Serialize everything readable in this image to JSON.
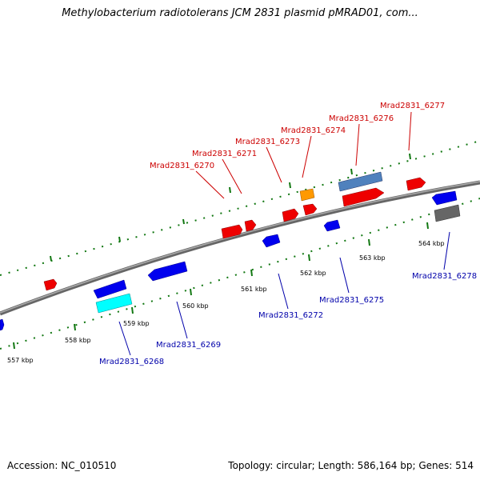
{
  "title": "Methylobacterium radiotolerans JCM 2831 plasmid pMRAD01, com...",
  "footer": {
    "accession": "Accession: NC_010510",
    "summary": "Topology: circular; Length: 586,164 bp; Genes: 514"
  },
  "colors": {
    "backbone": "#888888",
    "tick": "#117711",
    "forward_gene": "#ff0000",
    "reverse_gene": "#0000ee",
    "forward_label": "#cc0000",
    "reverse_label": "#0000aa"
  },
  "kbp_labels": [
    "557 kbp",
    "558 kbp",
    "559 kbp",
    "560 kbp",
    "561 kbp",
    "562 kbp",
    "563 kbp",
    "564 kbp"
  ],
  "forward_gene_labels": [
    "Mrad2831_6270",
    "Mrad2831_6271",
    "Mrad2831_6273",
    "Mrad2831_6274",
    "Mrad2831_6276",
    "Mrad2831_6277"
  ],
  "reverse_gene_labels": [
    "Mrad2831_6268",
    "Mrad2831_6269",
    "Mrad2831_6272",
    "Mrad2831_6275",
    "Mrad2831_6278"
  ]
}
